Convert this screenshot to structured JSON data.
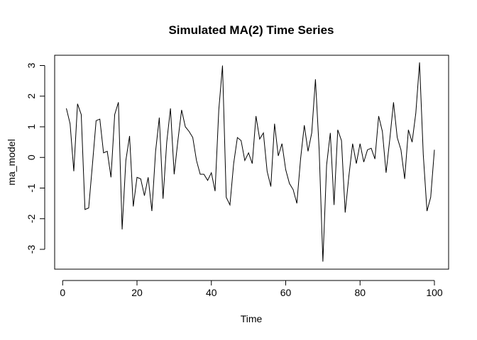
{
  "chart_data": {
    "type": "line",
    "title": "Simulated MA(2) Time Series",
    "xlabel": "Time",
    "ylabel": "ma_model",
    "xlim": [
      1,
      100
    ],
    "ylim": [
      -3.4,
      3.1
    ],
    "x_ticks": [
      0,
      20,
      40,
      60,
      80,
      100
    ],
    "y_ticks": [
      -3,
      -2,
      -1,
      0,
      1,
      2,
      3
    ],
    "grid": false,
    "series": [
      {
        "color": "#000000",
        "x": [
          1,
          2,
          3,
          4,
          5,
          6,
          7,
          8,
          9,
          10,
          11,
          12,
          13,
          14,
          15,
          16,
          17,
          18,
          19,
          20,
          21,
          22,
          23,
          24,
          25,
          26,
          27,
          28,
          29,
          30,
          31,
          32,
          33,
          34,
          35,
          36,
          37,
          38,
          39,
          40,
          41,
          42,
          43,
          44,
          45,
          46,
          47,
          48,
          49,
          50,
          51,
          52,
          53,
          54,
          55,
          56,
          57,
          58,
          59,
          60,
          61,
          62,
          63,
          64,
          65,
          66,
          67,
          68,
          69,
          70,
          71,
          72,
          73,
          74,
          75,
          76,
          77,
          78,
          79,
          80,
          81,
          82,
          83,
          84,
          85,
          86,
          87,
          88,
          89,
          90,
          91,
          92,
          93,
          94,
          95,
          96,
          97,
          98,
          99,
          100
        ],
        "values": [
          1.6,
          1.1,
          -0.45,
          1.75,
          1.4,
          -1.7,
          -1.65,
          -0.25,
          1.2,
          1.25,
          0.15,
          0.2,
          -0.65,
          1.4,
          1.8,
          -2.35,
          -0.1,
          0.7,
          -1.6,
          -0.65,
          -0.7,
          -1.25,
          -0.65,
          -1.75,
          0.2,
          1.3,
          -1.35,
          0.5,
          1.6,
          -0.55,
          0.55,
          1.55,
          1.0,
          0.85,
          0.65,
          -0.1,
          -0.55,
          -0.55,
          -0.75,
          -0.5,
          -1.1,
          1.55,
          3.0,
          -1.3,
          -1.55,
          -0.2,
          0.65,
          0.55,
          -0.1,
          0.15,
          -0.2,
          1.35,
          0.6,
          0.8,
          -0.45,
          -0.95,
          1.1,
          0.05,
          0.45,
          -0.4,
          -0.85,
          -1.05,
          -1.5,
          -0.05,
          1.05,
          0.2,
          0.8,
          2.55,
          0.25,
          -3.4,
          -0.25,
          0.8,
          -1.55,
          0.9,
          0.55,
          -1.8,
          -0.6,
          0.45,
          -0.2,
          0.45,
          -0.15,
          0.25,
          0.3,
          -0.05,
          1.35,
          0.85,
          -0.5,
          0.6,
          1.8,
          0.65,
          0.25,
          -0.7,
          0.9,
          0.5,
          1.45,
          3.1,
          0.1,
          -1.75,
          -1.3,
          0.25
        ]
      }
    ]
  }
}
